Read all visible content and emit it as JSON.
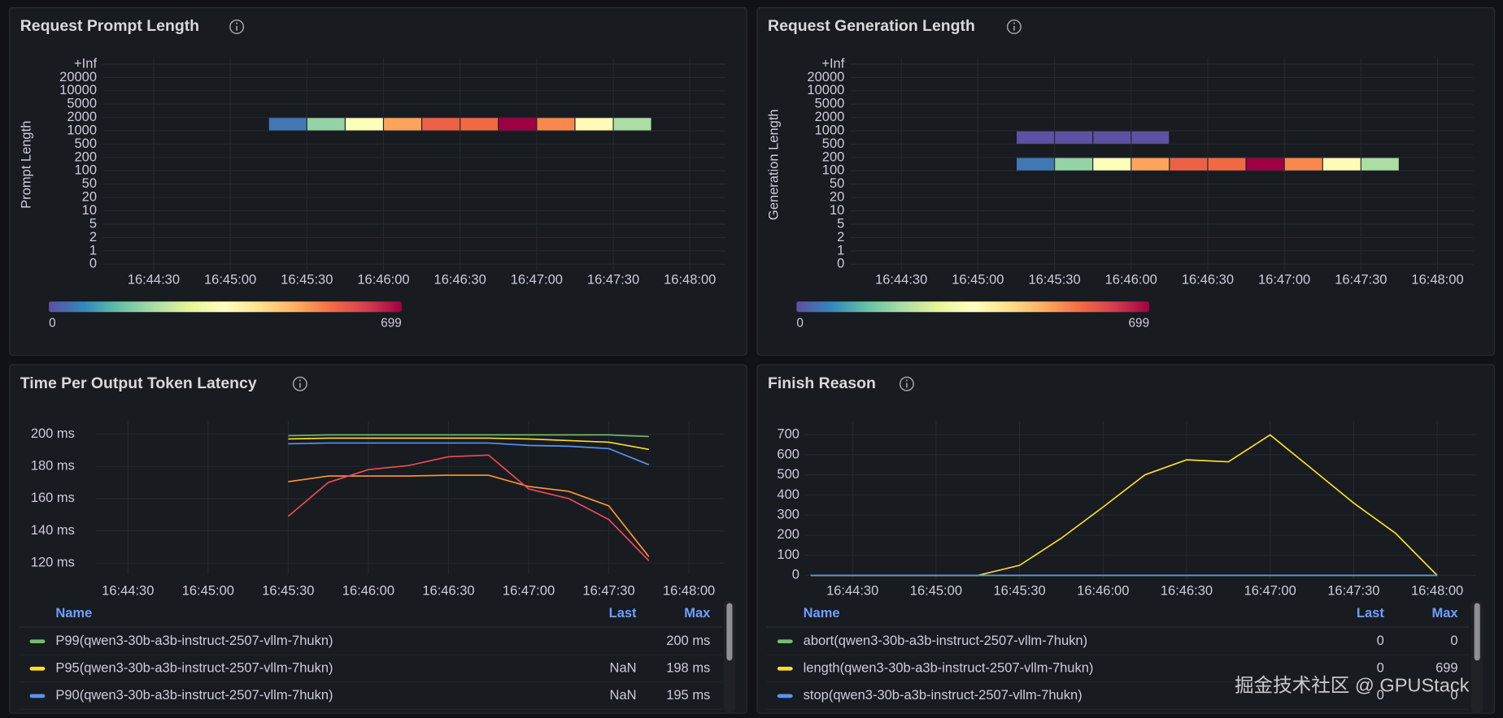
{
  "chart_data": [
    {
      "type": "heatmap",
      "title": "Request Prompt Length",
      "y_label": "Prompt Length",
      "y_buckets": [
        "0",
        "1",
        "2",
        "5",
        "10",
        "20",
        "50",
        "100",
        "200",
        "500",
        "1000",
        "2000",
        "5000",
        "10000",
        "20000",
        "+Inf"
      ],
      "xlim": [
        60250,
        60494
      ],
      "xticks": [
        {
          "value": 60270,
          "label": "16:44:30"
        },
        {
          "value": 60300,
          "label": "16:45:00"
        },
        {
          "value": 60330,
          "label": "16:45:30"
        },
        {
          "value": 60360,
          "label": "16:46:00"
        },
        {
          "value": 60390,
          "label": "16:46:30"
        },
        {
          "value": 60420,
          "label": "16:47:00"
        },
        {
          "value": 60450,
          "label": "16:47:30"
        },
        {
          "value": 60480,
          "label": "16:48:00"
        }
      ],
      "bucket_width": 15,
      "rows": [
        {
          "bucket": "2000",
          "x": [
            60330,
            60345,
            60360,
            60375,
            60390,
            60405,
            60420,
            60435,
            60450,
            60465
          ],
          "values": [
            50,
            185,
            340,
            500,
            575,
            565,
            699,
            530,
            360,
            210
          ]
        }
      ],
      "zlim": [
        0,
        699
      ],
      "color_scale": [
        "#5e4fa2",
        "#3288bd",
        "#66c2a5",
        "#abdda4",
        "#e6f598",
        "#ffffbf",
        "#fee08b",
        "#fdae61",
        "#f46d43",
        "#d53e4f",
        "#9e0142"
      ]
    },
    {
      "type": "heatmap",
      "title": "Request Generation Length",
      "y_label": "Generation Length",
      "y_buckets": [
        "0",
        "1",
        "2",
        "5",
        "10",
        "20",
        "50",
        "100",
        "200",
        "500",
        "1000",
        "2000",
        "5000",
        "10000",
        "20000",
        "+Inf"
      ],
      "xlim": [
        60250,
        60494
      ],
      "xticks": [
        {
          "value": 60270,
          "label": "16:44:30"
        },
        {
          "value": 60300,
          "label": "16:45:00"
        },
        {
          "value": 60330,
          "label": "16:45:30"
        },
        {
          "value": 60360,
          "label": "16:46:00"
        },
        {
          "value": 60390,
          "label": "16:46:30"
        },
        {
          "value": 60420,
          "label": "16:47:00"
        },
        {
          "value": 60450,
          "label": "16:47:30"
        },
        {
          "value": 60480,
          "label": "16:48:00"
        }
      ],
      "bucket_width": 15,
      "rows": [
        {
          "bucket": "1000",
          "x": [
            60330,
            60345,
            60360,
            60375
          ],
          "values": [
            3,
            3,
            3,
            3
          ]
        },
        {
          "bucket": "200",
          "x": [
            60330,
            60345,
            60360,
            60375,
            60390,
            60405,
            60420,
            60435,
            60450,
            60465
          ],
          "values": [
            50,
            185,
            340,
            500,
            575,
            565,
            699,
            530,
            360,
            210
          ]
        }
      ],
      "zlim": [
        0,
        699
      ],
      "color_scale": [
        "#5e4fa2",
        "#3288bd",
        "#66c2a5",
        "#abdda4",
        "#e6f598",
        "#ffffbf",
        "#fee08b",
        "#fdae61",
        "#f46d43",
        "#d53e4f",
        "#9e0142"
      ]
    },
    {
      "type": "line",
      "title": "Time Per Output Token Latency",
      "x": [
        60330,
        60345,
        60360,
        60375,
        60390,
        60405,
        60420,
        60435,
        60450,
        60465
      ],
      "xlim": [
        60258,
        60493
      ],
      "xticks": [
        {
          "value": 60270,
          "label": "16:44:30"
        },
        {
          "value": 60300,
          "label": "16:45:00"
        },
        {
          "value": 60330,
          "label": "16:45:30"
        },
        {
          "value": 60360,
          "label": "16:46:00"
        },
        {
          "value": 60390,
          "label": "16:46:30"
        },
        {
          "value": 60420,
          "label": "16:47:00"
        },
        {
          "value": 60450,
          "label": "16:47:30"
        },
        {
          "value": 60480,
          "label": "16:48:00"
        }
      ],
      "ylim": [
        113,
        208
      ],
      "yticks": [
        {
          "value": 120,
          "label": "120 ms"
        },
        {
          "value": 140,
          "label": "140 ms"
        },
        {
          "value": 160,
          "label": "160 ms"
        },
        {
          "value": 180,
          "label": "180 ms"
        },
        {
          "value": 200,
          "label": "200 ms"
        }
      ],
      "grid": true,
      "legend_columns": [
        "Name",
        "Last",
        "Max"
      ],
      "series": [
        {
          "name": "P99(qwen3-30b-a3b-instruct-2507-vllm-7hukn)",
          "color": "#73bf69",
          "values": [
            199,
            199.5,
            199.5,
            199.5,
            199.5,
            199.5,
            199.5,
            199.5,
            199.5,
            198.5
          ],
          "legend_max": "200 ms"
        },
        {
          "name": "P95(qwen3-30b-a3b-instruct-2507-vllm-7hukn)",
          "color": "#fade2a",
          "values": [
            197,
            197.5,
            197.5,
            197.5,
            197.5,
            197.5,
            197,
            196,
            195,
            190.5
          ],
          "legend_last": "NaN",
          "legend_max": "198 ms"
        },
        {
          "name": "P90(qwen3-30b-a3b-instruct-2507-vllm-7hukn)",
          "color": "#5794f2",
          "values": [
            194,
            194.5,
            194.5,
            194.5,
            194.5,
            194.5,
            193,
            192.5,
            191,
            181
          ],
          "legend_last": "NaN",
          "legend_max": "195 ms"
        },
        {
          "color": "#ff9830",
          "values": [
            170.5,
            174,
            174,
            174,
            174.5,
            174.5,
            167.5,
            164.5,
            155.5,
            124
          ]
        },
        {
          "color": "#f2495c",
          "values": [
            149,
            170,
            178,
            180.5,
            186,
            187,
            166,
            160,
            147,
            121.5
          ]
        }
      ]
    },
    {
      "type": "line",
      "title": "Finish Reason",
      "x": [
        60255,
        60270,
        60285,
        60300,
        60315,
        60330,
        60345,
        60360,
        60375,
        60390,
        60405,
        60420,
        60435,
        60450,
        60465,
        60480
      ],
      "xlim": [
        60253,
        60494
      ],
      "xticks": [
        {
          "value": 60270,
          "label": "16:44:30"
        },
        {
          "value": 60300,
          "label": "16:45:00"
        },
        {
          "value": 60330,
          "label": "16:45:30"
        },
        {
          "value": 60360,
          "label": "16:46:00"
        },
        {
          "value": 60390,
          "label": "16:46:30"
        },
        {
          "value": 60420,
          "label": "16:47:00"
        },
        {
          "value": 60450,
          "label": "16:47:30"
        },
        {
          "value": 60480,
          "label": "16:48:00"
        }
      ],
      "ylim": [
        -19,
        767
      ],
      "yticks": [
        0,
        100,
        200,
        300,
        400,
        500,
        600,
        700
      ],
      "grid": true,
      "legend_columns": [
        "Name",
        "Last",
        "Max"
      ],
      "series": [
        {
          "name": "abort(qwen3-30b-a3b-instruct-2507-vllm-7hukn)",
          "color": "#73bf69",
          "values": [
            0,
            0,
            0,
            0,
            0,
            0,
            0,
            0,
            0,
            0,
            0,
            0,
            0,
            0,
            0,
            0
          ],
          "legend_last": 0,
          "legend_max": 0
        },
        {
          "name": "length(qwen3-30b-a3b-instruct-2507-vllm-7hukn)",
          "color": "#fade2a",
          "values": [
            0,
            0,
            0,
            0,
            0,
            50,
            185,
            340,
            500,
            575,
            565,
            699,
            530,
            360,
            210,
            0
          ],
          "legend_last": 0,
          "legend_max": 699
        },
        {
          "name": "stop(qwen3-30b-a3b-instruct-2507-vllm-7hukn)",
          "color": "#5794f2",
          "values": [
            0,
            0,
            0,
            0,
            0,
            0,
            0,
            0,
            0,
            0,
            0,
            0,
            0,
            0,
            0,
            0
          ],
          "legend_last": 0,
          "legend_max": 0
        }
      ]
    }
  ],
  "watermark": "掘金技术社区 @ GPUStack"
}
